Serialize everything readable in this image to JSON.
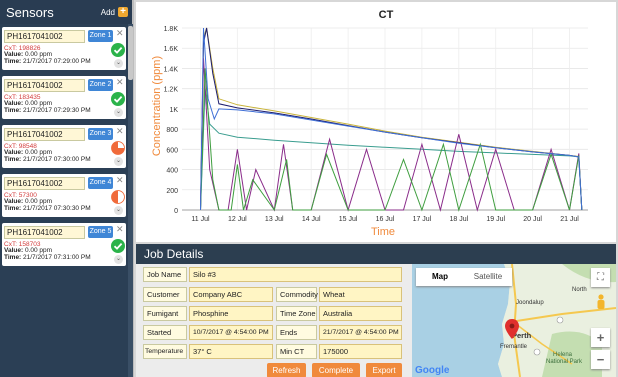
{
  "sidebar": {
    "title": "Sensors",
    "add_label": "Add",
    "cards": [
      {
        "id": "PH1617041002",
        "zone": "Zone 1",
        "cxt": "CxT: 198826",
        "value_label": "Value:",
        "value": " 0.00 ppm",
        "time_label": "Time:",
        "time": " 21/7/2017 07:29:00 PM",
        "status": "complete"
      },
      {
        "id": "PH1617041002",
        "zone": "Zone 2",
        "cxt": "CxT: 183435",
        "value_label": "Value:",
        "value": " 0.00 ppm",
        "time_label": "Time:",
        "time": " 21/7/2017 07:29:30 PM",
        "status": "complete"
      },
      {
        "id": "PH1617041002",
        "zone": "Zone 3",
        "cxt": "CxT: 98548",
        "value_label": "Value:",
        "value": " 0.00 ppm",
        "time_label": "Time:",
        "time": " 21/7/2017 07:30:00 PM",
        "status": "partial",
        "fraction": 0.25
      },
      {
        "id": "PH1617041002",
        "zone": "Zone 4",
        "cxt": "CxT: 57300",
        "value_label": "Value:",
        "value": " 0.00 ppm",
        "time_label": "Time:",
        "time": " 21/7/2017 07:30:30 PM",
        "status": "partial",
        "fraction": 0.5
      },
      {
        "id": "PH1617041002",
        "zone": "Zone 5",
        "cxt": "CxT: 158703",
        "value_label": "Value:",
        "value": " 0.00 ppm",
        "time_label": "Time:",
        "time": " 21/7/2017 07:31:00 PM",
        "status": "complete"
      }
    ]
  },
  "colors": {
    "sidebar_bg": "#2b3f55",
    "zone_badge": "#3f86d6",
    "ok_green": "#2bb34a",
    "partial_orange": "#f06a3a",
    "accent_orange": "#f08a3c",
    "cxt_red": "#d23b3b"
  },
  "chart_data": {
    "type": "line",
    "title": "CT",
    "xlabel": "Time",
    "ylabel": "Concentration (ppm)",
    "x_ticks": [
      "11 Jul",
      "12 Jul",
      "13 Jul",
      "14 Jul",
      "15 Jul",
      "16 Jul",
      "17 Jul",
      "18 Jul",
      "19 Jul",
      "20 Jul",
      "21 Jul"
    ],
    "y_ticks": [
      "0",
      "200",
      "400",
      "600",
      "800",
      "1K",
      "1.2K",
      "1.4K",
      "1.6K",
      "1.8K"
    ],
    "xlim": [
      "10 Jul 12:00",
      "21 Jul 12:00"
    ],
    "ylim": [
      0,
      1800
    ],
    "grid": true,
    "series": [
      {
        "color": "#c9b43c",
        "x": [
          "11 Jul 00:00",
          "11 Jul 02:00",
          "11 Jul 04:00",
          "11 Jul 08:00",
          "11 Jul 12:00",
          "12 Jul",
          "13 Jul",
          "14 Jul",
          "15 Jul",
          "16 Jul",
          "17 Jul",
          "18 Jul",
          "19 Jul",
          "20 Jul",
          "21 Jul",
          "21 Jul 06:00",
          "21 Jul 08:00"
        ],
        "y": [
          0,
          1700,
          1800,
          1400,
          1100,
          1040,
          980,
          915,
          850,
          780,
          720,
          670,
          620,
          580,
          540,
          530,
          0
        ]
      },
      {
        "color": "#1d1d6e",
        "x": [
          "11 Jul 00:00",
          "11 Jul 02:00",
          "11 Jul 04:00",
          "11 Jul 08:00",
          "11 Jul 12:00",
          "12 Jul",
          "13 Jul",
          "14 Jul",
          "15 Jul",
          "16 Jul",
          "17 Jul",
          "18 Jul",
          "19 Jul",
          "20 Jul",
          "21 Jul",
          "21 Jul 06:00",
          "21 Jul 08:00"
        ],
        "y": [
          0,
          1650,
          1800,
          1350,
          1050,
          1010,
          960,
          900,
          835,
          770,
          715,
          665,
          615,
          575,
          540,
          525,
          0
        ]
      },
      {
        "color": "#3a9d8f",
        "x": [
          "11 Jul 00:00",
          "11 Jul 03:00",
          "11 Jul 06:00",
          "11 Jul 12:00",
          "12 Jul",
          "13 Jul",
          "14 Jul",
          "15 Jul",
          "16 Jul",
          "17 Jul",
          "18 Jul",
          "19 Jul",
          "20 Jul",
          "21 Jul",
          "21 Jul 06:00",
          "21 Jul 08:00"
        ],
        "y": [
          0,
          1200,
          850,
          760,
          720,
          690,
          665,
          640,
          620,
          600,
          580,
          565,
          550,
          535,
          525,
          0
        ]
      },
      {
        "color": "#8a2c8a",
        "x": [
          "11 Jul 00:00",
          "11 Jul 02:00",
          "11 Jul 06:00",
          "11 Jul 12:00",
          "11 Jul 18:00",
          "12 Jul",
          "12 Jul 06:00",
          "12 Jul 12:00",
          "13 Jul",
          "13 Jul 06:00",
          "13 Jul 12:00",
          "14 Jul",
          "14 Jul 12:00",
          "15 Jul",
          "15 Jul 12:00",
          "16 Jul",
          "16 Jul 12:00",
          "17 Jul",
          "17 Jul 12:00",
          "18 Jul",
          "18 Jul 12:00",
          "19 Jul",
          "19 Jul 12:00",
          "20 Jul",
          "20 Jul 12:00",
          "21 Jul",
          "21 Jul 06:00",
          "21 Jul 08:00"
        ],
        "y": [
          0,
          1500,
          400,
          0,
          0,
          600,
          0,
          400,
          0,
          650,
          0,
          0,
          700,
          0,
          600,
          0,
          0,
          650,
          0,
          750,
          0,
          600,
          0,
          0,
          600,
          0,
          560,
          0
        ]
      },
      {
        "color": "#3f9e3f",
        "x": [
          "11 Jul 00:00",
          "11 Jul 03:00",
          "11 Jul 08:00",
          "11 Jul 12:00",
          "11 Jul 20:00",
          "12 Jul",
          "12 Jul 04:00",
          "12 Jul 10:00",
          "13 Jul",
          "13 Jul 08:00",
          "13 Jul 12:00",
          "14 Jul",
          "14 Jul 10:00",
          "15 Jul",
          "16 Jul",
          "16 Jul 12:00",
          "17 Jul",
          "17 Jul 14:00",
          "18 Jul",
          "18 Jul 14:00",
          "19 Jul",
          "20 Jul",
          "20 Jul 12:00",
          "21 Jul",
          "21 Jul 06:00",
          "21 Jul 08:00"
        ],
        "y": [
          0,
          1400,
          300,
          0,
          0,
          450,
          0,
          300,
          0,
          500,
          0,
          0,
          550,
          0,
          0,
          500,
          0,
          650,
          0,
          650,
          0,
          0,
          550,
          0,
          540,
          0
        ]
      },
      {
        "color": "#3f6fd6",
        "x": [
          "11 Jul 00:00",
          "11 Jul 02:00",
          "11 Jul 05:00",
          "11 Jul 09:00",
          "11 Jul 12:00",
          "12 Jul",
          "13 Jul",
          "14 Jul",
          "15 Jul",
          "16 Jul",
          "17 Jul",
          "18 Jul",
          "19 Jul",
          "20 Jul",
          "21 Jul",
          "21 Jul 06:00",
          "21 Jul 08:00"
        ],
        "y": [
          0,
          1800,
          1100,
          900,
          1000,
          990,
          950,
          890,
          830,
          770,
          715,
          660,
          615,
          575,
          540,
          525,
          0
        ]
      }
    ]
  },
  "job": {
    "title": "Job Details",
    "fields": {
      "job_name_label": "Job Name",
      "job_name": "Silo #3",
      "customer_label": "Customer",
      "customer": "Company ABC",
      "commodity_label": "Commodity",
      "commodity": "Wheat",
      "fumigant_label": "Fumigant",
      "fumigant": "Phosphine",
      "timezone_label": "Time Zone",
      "timezone": "Australia",
      "started_label": "Started",
      "started": "10/7/2017 @ 4:54:00 PM",
      "ends_label": "Ends",
      "ends": "21/7/2017 @ 4:54:00 PM",
      "temperature_label": "Temperature",
      "temperature": "37° C",
      "minct_label": "Min CT",
      "minct": "175000"
    },
    "buttons": {
      "refresh": "Refresh",
      "complete": "Complete",
      "export": "Export"
    }
  },
  "map": {
    "tab_map": "Map",
    "tab_satellite": "Satellite",
    "labels": {
      "joondalup": "Joondalup",
      "perth": "Perth",
      "fremantle": "Fremantle",
      "helena": "Helena",
      "national_park": "National Park",
      "north": "North",
      "google": "Google"
    },
    "zoom_in": "+",
    "zoom_out": "−",
    "icons": [
      "fullscreen-icon",
      "pegman-icon",
      "map-pin-icon"
    ]
  }
}
